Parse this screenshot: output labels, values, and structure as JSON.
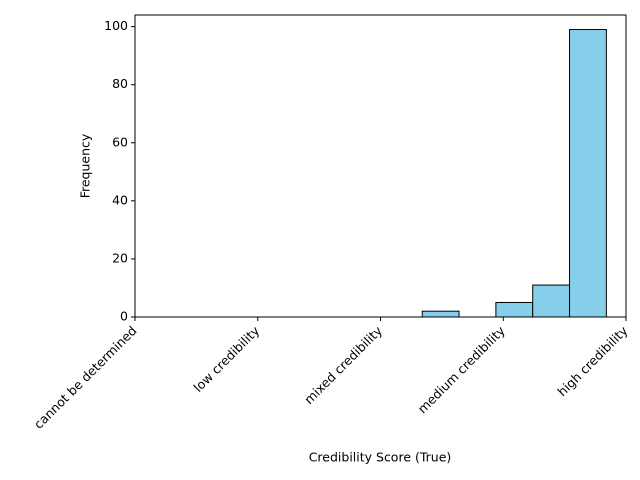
{
  "chart_data": {
    "type": "histogram",
    "xlabel": "Credibility Score (True)",
    "ylabel": "Frequency",
    "bins": [
      2.34,
      2.64,
      2.94,
      3.24,
      3.54,
      3.84
    ],
    "values": [
      2,
      0,
      5,
      11,
      99
    ],
    "color": "#87ceeb",
    "edgecolor": "#000000",
    "xlim": [
      0,
      4
    ],
    "xticks": [
      {
        "value": 0,
        "label": "cannot be determined"
      },
      {
        "value": 1,
        "label": "low credibility"
      },
      {
        "value": 2,
        "label": "mixed credibility"
      },
      {
        "value": 3,
        "label": "medium credibility"
      },
      {
        "value": 4,
        "label": "high credibility"
      }
    ],
    "ylim": [
      0,
      104
    ],
    "yticks": [
      0,
      20,
      40,
      60,
      80,
      100
    ]
  }
}
